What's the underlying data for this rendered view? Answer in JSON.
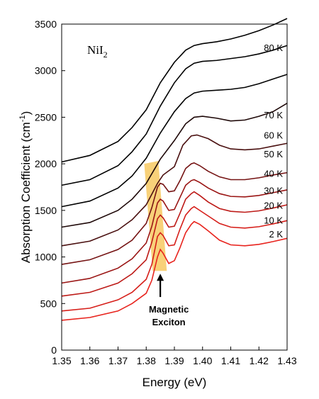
{
  "chart_data": {
    "type": "line",
    "title": "",
    "xlabel": "Energy (eV)",
    "ylabel": "Absorption Coefficient (cm",
    "ylabel_sup": "-1",
    "ylabel_end": ")",
    "xlim": [
      1.35,
      1.43
    ],
    "ylim": [
      0,
      3500
    ],
    "x_ticks": [
      "1.35",
      "1.36",
      "1.37",
      "1.38",
      "1.39",
      "1.40",
      "1.41",
      "1.42",
      "1.43"
    ],
    "y_ticks": [
      "0",
      "500",
      "1000",
      "1500",
      "2000",
      "2500",
      "3000",
      "3500"
    ],
    "grid": false,
    "compound": "NiI",
    "compound_sub": "2",
    "annotation": {
      "line1": "Magnetic",
      "line2": "Exciton",
      "band_color": "#f5c24c",
      "band_top_x": [
        1.3793,
        1.3843
      ],
      "band_top_y": 2000,
      "band_bottom_x": [
        1.3823,
        1.3873
      ],
      "band_bottom_y": 850,
      "arrow_x": 1.385,
      "arrow_from_y": 570,
      "arrow_to_y": 820
    },
    "series": [
      {
        "name": "2 K",
        "color": "#e8241e",
        "label_y": 1240,
        "x": [
          1.35,
          1.36,
          1.37,
          1.375,
          1.38,
          1.382,
          1.384,
          1.385,
          1.386,
          1.388,
          1.39,
          1.392,
          1.394,
          1.396,
          1.397,
          1.399,
          1.402,
          1.406,
          1.41,
          1.415,
          1.42,
          1.425,
          1.43
        ],
        "y": [
          320,
          350,
          420,
          500,
          610,
          750,
          1000,
          1080,
          1040,
          930,
          960,
          1100,
          1260,
          1350,
          1380,
          1350,
          1280,
          1180,
          1130,
          1120,
          1135,
          1165,
          1200
        ]
      },
      {
        "name": "10 K",
        "color": "#d61f1a",
        "label_y": 1390,
        "x": [
          1.35,
          1.36,
          1.37,
          1.375,
          1.38,
          1.382,
          1.384,
          1.385,
          1.386,
          1.388,
          1.39,
          1.392,
          1.394,
          1.396,
          1.397,
          1.399,
          1.402,
          1.406,
          1.41,
          1.415,
          1.42,
          1.425,
          1.43
        ],
        "y": [
          420,
          450,
          540,
          620,
          760,
          920,
          1220,
          1260,
          1230,
          1120,
          1130,
          1300,
          1450,
          1520,
          1540,
          1500,
          1440,
          1360,
          1320,
          1310,
          1325,
          1355,
          1390
        ]
      },
      {
        "name": "20 K",
        "color": "#bd1a17",
        "label_y": 1550,
        "x": [
          1.35,
          1.36,
          1.37,
          1.375,
          1.38,
          1.382,
          1.384,
          1.385,
          1.386,
          1.388,
          1.39,
          1.392,
          1.394,
          1.396,
          1.397,
          1.399,
          1.402,
          1.406,
          1.41,
          1.415,
          1.42,
          1.425,
          1.43
        ],
        "y": [
          580,
          620,
          720,
          820,
          970,
          1160,
          1410,
          1450,
          1420,
          1320,
          1330,
          1470,
          1620,
          1680,
          1700,
          1660,
          1590,
          1520,
          1490,
          1480,
          1495,
          1525,
          1560
        ]
      },
      {
        "name": "30 K",
        "color": "#9a1514",
        "label_y": 1710,
        "x": [
          1.35,
          1.36,
          1.37,
          1.375,
          1.38,
          1.382,
          1.384,
          1.385,
          1.386,
          1.388,
          1.39,
          1.392,
          1.394,
          1.396,
          1.397,
          1.399,
          1.402,
          1.406,
          1.41,
          1.415,
          1.42,
          1.425,
          1.43
        ],
        "y": [
          720,
          770,
          880,
          980,
          1150,
          1330,
          1580,
          1620,
          1600,
          1500,
          1510,
          1640,
          1770,
          1820,
          1830,
          1800,
          1740,
          1680,
          1650,
          1645,
          1660,
          1690,
          1720
        ]
      },
      {
        "name": "40 K",
        "color": "#751313",
        "label_y": 1890,
        "x": [
          1.35,
          1.36,
          1.37,
          1.375,
          1.38,
          1.382,
          1.384,
          1.385,
          1.386,
          1.388,
          1.39,
          1.392,
          1.394,
          1.396,
          1.397,
          1.399,
          1.402,
          1.406,
          1.41,
          1.415,
          1.42,
          1.425,
          1.43
        ],
        "y": [
          920,
          970,
          1080,
          1180,
          1360,
          1530,
          1750,
          1790,
          1780,
          1700,
          1710,
          1820,
          1950,
          2000,
          2010,
          1980,
          1920,
          1860,
          1830,
          1830,
          1850,
          1880,
          1905
        ]
      },
      {
        "name": "50 K",
        "color": "#4a1010",
        "label_y": 2100,
        "x": [
          1.35,
          1.36,
          1.37,
          1.375,
          1.38,
          1.384,
          1.386,
          1.39,
          1.393,
          1.396,
          1.398,
          1.402,
          1.406,
          1.41,
          1.415,
          1.42,
          1.425,
          1.43
        ],
        "y": [
          1120,
          1170,
          1290,
          1400,
          1560,
          1790,
          1880,
          1970,
          2200,
          2300,
          2310,
          2270,
          2200,
          2160,
          2150,
          2160,
          2190,
          2220
        ]
      },
      {
        "name": "60 K",
        "color": "#1e0808",
        "label_y": 2300,
        "x": [
          1.35,
          1.36,
          1.37,
          1.375,
          1.38,
          1.385,
          1.39,
          1.394,
          1.397,
          1.4,
          1.405,
          1.41,
          1.415,
          1.42,
          1.425,
          1.43
        ],
        "y": [
          1320,
          1370,
          1500,
          1620,
          1790,
          2050,
          2250,
          2430,
          2500,
          2510,
          2490,
          2460,
          2470,
          2510,
          2560,
          2650
        ]
      },
      {
        "name": "70 K",
        "color": "#000000",
        "label_y": 2520,
        "x": [
          1.35,
          1.36,
          1.37,
          1.375,
          1.38,
          1.385,
          1.39,
          1.394,
          1.397,
          1.4,
          1.405,
          1.41,
          1.415,
          1.42,
          1.425,
          1.43
        ],
        "y": [
          1540,
          1600,
          1740,
          1870,
          2060,
          2330,
          2560,
          2700,
          2760,
          2780,
          2790,
          2800,
          2820,
          2860,
          2910,
          2960
        ]
      },
      {
        "name": "80 K",
        "color": "#000000",
        "label_y": 3240,
        "x": [
          1.35,
          1.36,
          1.37,
          1.375,
          1.38,
          1.385,
          1.39,
          1.394,
          1.397,
          1.4,
          1.405,
          1.41,
          1.415,
          1.42,
          1.425,
          1.43
        ],
        "y": [
          1770,
          1830,
          1980,
          2130,
          2320,
          2620,
          2870,
          3020,
          3080,
          3100,
          3110,
          3130,
          3150,
          3180,
          3220,
          3270
        ]
      },
      {
        "name": "",
        "color": "#000000",
        "label_y": null,
        "x": [
          1.35,
          1.36,
          1.37,
          1.375,
          1.38,
          1.385,
          1.39,
          1.394,
          1.397,
          1.4,
          1.405,
          1.41,
          1.415,
          1.42,
          1.425,
          1.43
        ],
        "y": [
          2020,
          2090,
          2240,
          2390,
          2580,
          2870,
          3090,
          3220,
          3270,
          3290,
          3310,
          3340,
          3380,
          3430,
          3490,
          3560
        ]
      }
    ]
  }
}
